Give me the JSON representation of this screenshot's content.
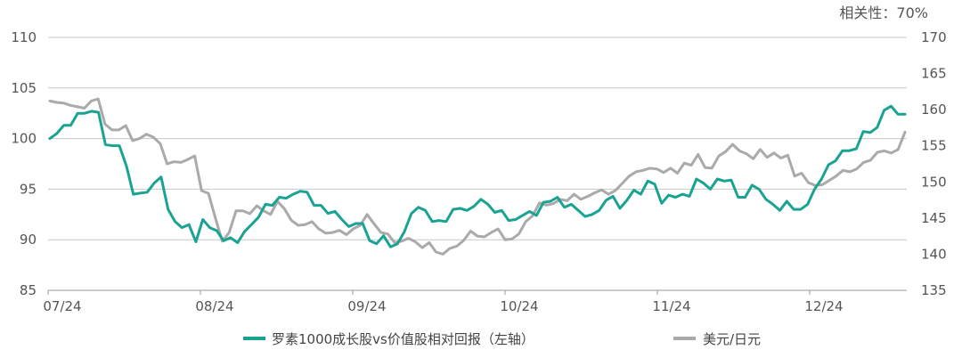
{
  "annotation": "相关性：70%",
  "chart_data": {
    "type": "line",
    "x_tick_labels": [
      "07/24",
      "08/24",
      "09/24",
      "10/24",
      "11/24",
      "12/24"
    ],
    "y_left": {
      "ticks": [
        85,
        90,
        95,
        100,
        105,
        110
      ],
      "range": [
        85,
        110
      ]
    },
    "y_right": {
      "ticks": [
        135,
        140,
        145,
        150,
        155,
        160,
        165,
        170
      ],
      "range": [
        135,
        170
      ]
    },
    "series": [
      {
        "name": "罗素1000成长股vs价值股相对回报（左轴）",
        "axis": "left",
        "color": "#1aa393",
        "values": [
          100.0,
          100.5,
          101.3,
          101.3,
          102.5,
          102.5,
          102.7,
          102.6,
          99.4,
          99.3,
          99.3,
          97.3,
          94.5,
          94.6,
          94.7,
          95.6,
          96.2,
          93.0,
          91.8,
          91.2,
          91.5,
          89.8,
          92.0,
          91.2,
          90.9,
          89.9,
          90.2,
          89.7,
          90.8,
          91.5,
          92.2,
          93.5,
          93.4,
          94.2,
          94.1,
          94.5,
          94.8,
          94.7,
          93.4,
          93.4,
          92.6,
          92.8,
          92.0,
          91.3,
          91.6,
          91.6,
          89.9,
          89.6,
          90.4,
          89.3,
          89.6,
          90.8,
          92.6,
          93.2,
          92.9,
          91.8,
          91.9,
          91.8,
          93.0,
          93.1,
          92.9,
          93.3,
          94.0,
          93.5,
          92.7,
          92.9,
          91.9,
          92.0,
          92.4,
          92.8,
          92.4,
          93.7,
          93.8,
          94.2,
          93.2,
          93.5,
          92.9,
          92.3,
          92.5,
          92.9,
          93.9,
          94.3,
          93.1,
          93.9,
          94.9,
          94.5,
          95.8,
          95.5,
          93.6,
          94.4,
          94.2,
          94.5,
          94.3,
          96.0,
          95.6,
          95.0,
          96.0,
          95.8,
          95.9,
          94.2,
          94.2,
          95.4,
          95.0,
          94.0,
          93.5,
          92.9,
          93.8,
          93.0,
          93.0,
          93.5,
          95.0,
          96.0,
          97.4,
          97.8,
          98.8,
          98.8,
          99.0,
          100.7,
          100.6,
          101.1,
          102.8,
          103.2,
          102.4,
          102.4
        ]
      },
      {
        "name": "美元/日元",
        "axis": "right",
        "color": "#aaaaaa",
        "values": [
          161.2,
          161.0,
          160.9,
          160.6,
          160.4,
          160.2,
          161.2,
          161.5,
          158.0,
          157.2,
          157.2,
          157.8,
          155.7,
          156.0,
          156.6,
          156.2,
          155.3,
          152.5,
          152.8,
          152.7,
          153.1,
          153.6,
          148.8,
          148.4,
          145.0,
          141.8,
          143.0,
          146.0,
          146.0,
          145.6,
          146.7,
          146.0,
          145.5,
          147.3,
          146.3,
          144.7,
          144.0,
          144.1,
          144.5,
          143.5,
          142.9,
          143.0,
          143.3,
          142.7,
          143.5,
          144.0,
          145.5,
          144.2,
          143.0,
          142.8,
          141.6,
          141.8,
          142.2,
          141.7,
          140.9,
          141.6,
          140.3,
          140.0,
          140.8,
          141.1,
          141.9,
          143.2,
          142.5,
          142.4,
          143.0,
          143.5,
          142.0,
          142.1,
          142.8,
          144.5,
          145.3,
          147.1,
          146.8,
          147.0,
          147.6,
          147.4,
          148.3,
          147.6,
          148.0,
          148.5,
          148.9,
          148.3,
          148.8,
          149.8,
          150.8,
          151.4,
          151.6,
          151.9,
          151.8,
          151.3,
          151.9,
          151.2,
          152.6,
          152.3,
          153.8,
          152.0,
          151.9,
          153.6,
          154.2,
          155.2,
          154.3,
          153.9,
          153.2,
          154.5,
          153.4,
          154.0,
          153.3,
          153.7,
          150.8,
          151.2,
          149.9,
          149.5,
          149.6,
          150.2,
          150.8,
          151.6,
          151.4,
          151.8,
          152.7,
          153.0,
          154.1,
          154.3,
          154.0,
          154.5,
          156.9
        ]
      }
    ],
    "grid": "horizontal",
    "legend_position": "bottom"
  }
}
